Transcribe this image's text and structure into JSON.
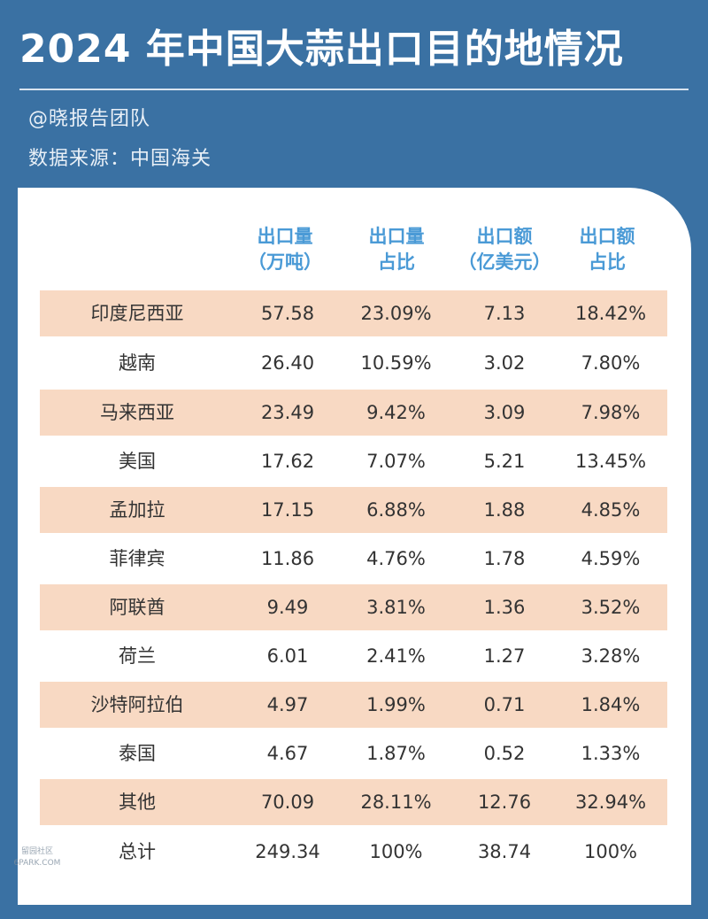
{
  "title": "2024 年中国大蒜出口目的地情况",
  "author": "@晓报告团队",
  "source": "数据来源：中国海关",
  "columns": [
    {
      "line1": "出口量",
      "line2": "（万吨）"
    },
    {
      "line1": "出口量",
      "line2": "占比"
    },
    {
      "line1": "出口额",
      "line2": "（亿美元）"
    },
    {
      "line1": "出口额",
      "line2": "占比"
    }
  ],
  "rows": [
    {
      "name": "印度尼西亚",
      "qty": "57.58",
      "qty_share": "23.09%",
      "value": "7.13",
      "value_share": "18.42%"
    },
    {
      "name": "越南",
      "qty": "26.40",
      "qty_share": "10.59%",
      "value": "3.02",
      "value_share": "7.80%"
    },
    {
      "name": "马来西亚",
      "qty": "23.49",
      "qty_share": "9.42%",
      "value": "3.09",
      "value_share": "7.98%"
    },
    {
      "name": "美国",
      "qty": "17.62",
      "qty_share": "7.07%",
      "value": "5.21",
      "value_share": "13.45%"
    },
    {
      "name": "孟加拉",
      "qty": "17.15",
      "qty_share": "6.88%",
      "value": "1.88",
      "value_share": "4.85%"
    },
    {
      "name": "菲律宾",
      "qty": "11.86",
      "qty_share": "4.76%",
      "value": "1.78",
      "value_share": "4.59%"
    },
    {
      "name": "阿联酋",
      "qty": "9.49",
      "qty_share": "3.81%",
      "value": "1.36",
      "value_share": "3.52%"
    },
    {
      "name": "荷兰",
      "qty": "6.01",
      "qty_share": "2.41%",
      "value": "1.27",
      "value_share": "3.28%"
    },
    {
      "name": "沙特阿拉伯",
      "qty": "4.97",
      "qty_share": "1.99%",
      "value": "0.71",
      "value_share": "1.84%"
    },
    {
      "name": "泰国",
      "qty": "4.67",
      "qty_share": "1.87%",
      "value": "0.52",
      "value_share": "1.33%"
    },
    {
      "name": "其他",
      "qty": "70.09",
      "qty_share": "28.11%",
      "value": "12.76",
      "value_share": "32.94%"
    },
    {
      "name": "总计",
      "qty": "249.34",
      "qty_share": "100%",
      "value": "38.74",
      "value_share": "100%"
    }
  ],
  "watermark": {
    "line1": "留园社区",
    "line2": "6PARK.COM"
  },
  "colors": {
    "background": "#3a71a3",
    "header_text": "#4a9ad6",
    "row_shade": "#f8d9c3",
    "card": "#ffffff"
  }
}
